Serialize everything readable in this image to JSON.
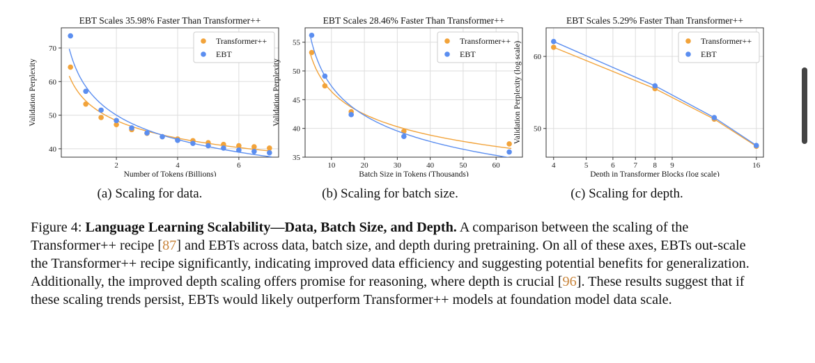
{
  "colors": {
    "transformer": "#f2a33a",
    "ebt": "#5b8ef0",
    "grid": "#dddddd",
    "axis": "#333333"
  },
  "chart_data": [
    {
      "id": "a",
      "type": "line",
      "title": "EBT Scales 35.98% Faster Than Transformer++",
      "xlabel": "Number of Tokens (Billions)",
      "ylabel": "Validation Perplexity",
      "xlim": [
        0.2,
        7.3
      ],
      "ylim": [
        37.5,
        76
      ],
      "xscale": "linear",
      "yscale": "linear",
      "xticks": [
        2,
        4,
        6
      ],
      "yticks": [
        40,
        50,
        60,
        70
      ],
      "legend": "top-right",
      "grid": true,
      "series": [
        {
          "name": "Transformer++",
          "color": "transformer",
          "x": [
            0.5,
            1.0,
            1.5,
            2.0,
            2.5,
            3.0,
            3.5,
            4.0,
            4.5,
            5.0,
            5.5,
            6.0,
            6.5,
            7.0
          ],
          "y": [
            64.3,
            53.3,
            49.3,
            47.2,
            45.7,
            44.6,
            43.6,
            42.9,
            42.4,
            41.8,
            41.3,
            40.9,
            40.6,
            40.2
          ]
        },
        {
          "name": "EBT",
          "color": "ebt",
          "x": [
            0.5,
            1.0,
            1.5,
            2.0,
            2.5,
            3.0,
            3.5,
            4.0,
            4.5,
            5.0,
            5.5,
            6.0,
            6.5,
            7.0
          ],
          "y": [
            73.6,
            57.1,
            51.5,
            48.4,
            46.2,
            44.7,
            43.6,
            42.5,
            41.6,
            40.9,
            40.2,
            39.6,
            39.2,
            38.8
          ]
        }
      ]
    },
    {
      "id": "b",
      "type": "line",
      "title": "EBT Scales 28.46% Faster Than Transformer++",
      "xlabel": "Batch Size in Tokens (Thousands)",
      "ylabel": "Validation Perplexity",
      "xlim": [
        2,
        68
      ],
      "ylim": [
        35,
        57.5
      ],
      "xscale": "linear",
      "yscale": "linear",
      "xticks": [
        10,
        20,
        30,
        40,
        50,
        60
      ],
      "yticks": [
        35,
        40,
        45,
        50,
        55
      ],
      "legend": "top-right",
      "grid": true,
      "series": [
        {
          "name": "Transformer++",
          "color": "transformer",
          "x": [
            4,
            8,
            16,
            32,
            64
          ],
          "y": [
            53.2,
            47.4,
            42.9,
            39.5,
            37.3
          ]
        },
        {
          "name": "EBT",
          "color": "ebt",
          "x": [
            4,
            8,
            16,
            32,
            64
          ],
          "y": [
            56.2,
            49.1,
            42.4,
            38.6,
            35.9
          ]
        }
      ]
    },
    {
      "id": "c",
      "type": "line",
      "title": "EBT Scales 5.29% Faster Than Transformer++",
      "xlabel": "Depth in Transformer Blocks (log scale)",
      "ylabel": "Validation Perplexity (log scale)",
      "xlim": [
        3.8,
        16.8
      ],
      "ylim": [
        46.5,
        64.5
      ],
      "xscale": "log",
      "yscale": "log",
      "xticks": [
        4,
        5,
        6,
        7,
        8,
        9,
        16
      ],
      "yticks": [
        50,
        60
      ],
      "legend": "top-right",
      "grid": true,
      "series": [
        {
          "name": "Transformer++",
          "color": "transformer",
          "x": [
            4,
            8,
            12,
            16
          ],
          "y": [
            61.4,
            55.3,
            51.2,
            47.8
          ]
        },
        {
          "name": "EBT",
          "color": "ebt",
          "x": [
            4,
            8,
            12,
            16
          ],
          "y": [
            62.3,
            55.7,
            51.4,
            47.9
          ]
        }
      ]
    }
  ],
  "captions": [
    "(a) Scaling for data.",
    "(b) Scaling for batch size.",
    "(c) Scaling for depth."
  ],
  "figure_caption": {
    "label": "Figure 4: ",
    "bold": "Language Learning Scalability—Data, Batch Size, and Depth.",
    "text1": " A comparison between the scaling of the Transformer++ recipe [",
    "ref1": "87",
    "text2": "] and EBTs across data, batch size, and depth during pretraining. On all of these axes, EBTs out-scale the Transformer++ recipe significantly, indicating improved data efficiency and suggesting potential benefits for generalization. Additionally, the improved depth scaling offers promise for reasoning, where depth is crucial [",
    "ref2": "96",
    "text3": "]. These results suggest that if these scaling trends persist, EBTs would likely outperform Transformer++ models at foundation model data scale."
  }
}
